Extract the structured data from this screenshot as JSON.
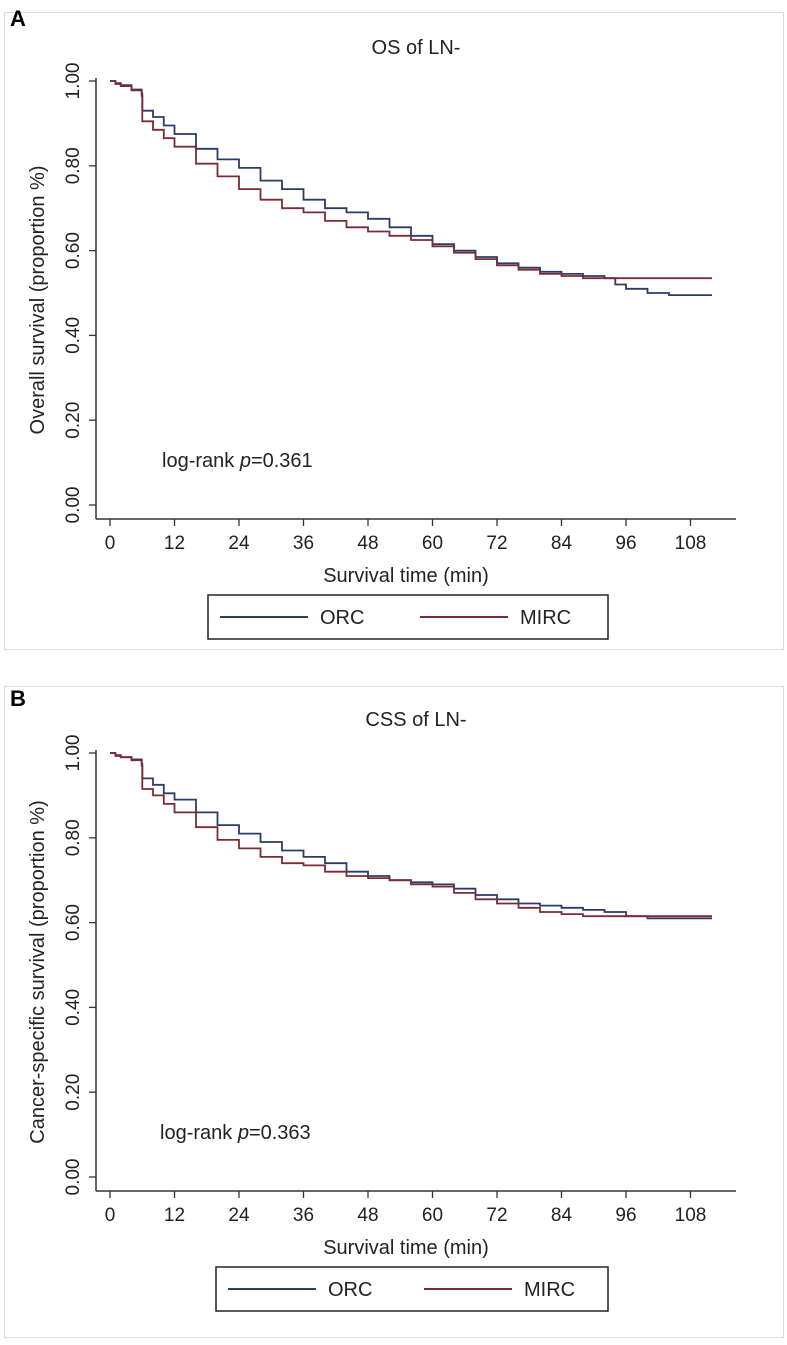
{
  "panels": [
    {
      "letter": "A"
    },
    {
      "letter": "B"
    }
  ],
  "colors": {
    "orc": "#2b3c6b",
    "mirc": "#7d2b33",
    "axis": "#333333"
  },
  "chart_data": [
    {
      "type": "line",
      "title": "OS of  LN-",
      "xlabel": "Survival time (min)",
      "ylabel": "Overall survival (proportion %)",
      "xlim": [
        0,
        112
      ],
      "ylim": [
        0,
        1
      ],
      "xticks": [
        0,
        12,
        24,
        36,
        48,
        60,
        72,
        84,
        96,
        108
      ],
      "xtick_labels": [
        "0",
        "12",
        "24",
        "36",
        "48",
        "60",
        "72",
        "84",
        "96",
        "108"
      ],
      "yticks": [
        0,
        0.2,
        0.4,
        0.6,
        0.8,
        1.0
      ],
      "ytick_labels": [
        "0.00",
        "0.20",
        "0.40",
        "0.60",
        "0.80",
        "1.00"
      ],
      "annotation": {
        "prefix": "log-rank ",
        "italic": "p",
        "suffix": "=0.361"
      },
      "legend_position": "bottom",
      "series": [
        {
          "name": "ORC",
          "color": "#2b3c6b",
          "x": [
            0,
            1,
            2,
            4,
            5.9,
            6,
            8,
            10,
            12,
            16,
            20,
            24,
            28,
            32,
            36,
            40,
            44,
            48,
            52,
            56,
            60,
            64,
            68,
            72,
            76,
            80,
            84,
            88,
            92,
            94,
            96,
            100,
            104,
            108,
            112
          ],
          "y": [
            1.0,
            0.995,
            0.99,
            0.98,
            0.97,
            0.93,
            0.915,
            0.895,
            0.875,
            0.84,
            0.815,
            0.795,
            0.765,
            0.745,
            0.72,
            0.7,
            0.69,
            0.675,
            0.655,
            0.635,
            0.615,
            0.6,
            0.585,
            0.57,
            0.56,
            0.55,
            0.545,
            0.54,
            0.535,
            0.52,
            0.51,
            0.5,
            0.495,
            0.495,
            0.495
          ]
        },
        {
          "name": "MIRC",
          "color": "#7d2b33",
          "x": [
            0,
            1,
            2,
            4,
            5.9,
            6,
            8,
            10,
            12,
            16,
            20,
            24,
            28,
            32,
            36,
            40,
            44,
            48,
            52,
            56,
            60,
            64,
            68,
            72,
            76,
            80,
            84,
            88,
            92,
            96,
            100,
            104,
            108,
            112
          ],
          "y": [
            1.0,
            0.993,
            0.988,
            0.978,
            0.965,
            0.905,
            0.885,
            0.865,
            0.845,
            0.805,
            0.775,
            0.745,
            0.72,
            0.7,
            0.69,
            0.67,
            0.655,
            0.645,
            0.635,
            0.625,
            0.61,
            0.595,
            0.58,
            0.565,
            0.555,
            0.545,
            0.54,
            0.535,
            0.535,
            0.535,
            0.535,
            0.535,
            0.535,
            0.535
          ]
        }
      ]
    },
    {
      "type": "line",
      "title": "CSS of  LN-",
      "xlabel": "Survival time (min)",
      "ylabel": "Cancer-specific survival (proportion %)",
      "xlim": [
        0,
        112
      ],
      "ylim": [
        0,
        1
      ],
      "xticks": [
        0,
        12,
        24,
        36,
        48,
        60,
        72,
        84,
        96,
        108
      ],
      "xtick_labels": [
        "0",
        "12",
        "24",
        "36",
        "48",
        "60",
        "72",
        "84",
        "96",
        "108"
      ],
      "yticks": [
        0,
        0.2,
        0.4,
        0.6,
        0.8,
        1.0
      ],
      "ytick_labels": [
        "0.00",
        "0.20",
        "0.40",
        "0.60",
        "0.80",
        "1.00"
      ],
      "annotation": {
        "prefix": "log-rank ",
        "italic": "p",
        "suffix": "=0.363"
      },
      "legend_position": "bottom",
      "series": [
        {
          "name": "ORC",
          "color": "#2b3c6b",
          "x": [
            0,
            1,
            2,
            4,
            5.9,
            6,
            8,
            10,
            12,
            16,
            20,
            24,
            28,
            32,
            36,
            40,
            44,
            48,
            52,
            56,
            60,
            64,
            68,
            72,
            76,
            80,
            84,
            88,
            92,
            96,
            100,
            104,
            108,
            112
          ],
          "y": [
            1.0,
            0.995,
            0.99,
            0.985,
            0.975,
            0.94,
            0.925,
            0.905,
            0.89,
            0.86,
            0.83,
            0.81,
            0.79,
            0.77,
            0.755,
            0.74,
            0.72,
            0.71,
            0.7,
            0.695,
            0.69,
            0.68,
            0.665,
            0.655,
            0.645,
            0.64,
            0.635,
            0.63,
            0.625,
            0.615,
            0.61,
            0.61,
            0.61,
            0.61
          ]
        },
        {
          "name": "MIRC",
          "color": "#7d2b33",
          "x": [
            0,
            1,
            2,
            4,
            5.9,
            6,
            8,
            10,
            12,
            16,
            20,
            24,
            28,
            32,
            36,
            40,
            44,
            48,
            52,
            56,
            60,
            64,
            68,
            72,
            76,
            80,
            84,
            88,
            92,
            96,
            100,
            104,
            108,
            112
          ],
          "y": [
            1.0,
            0.993,
            0.99,
            0.983,
            0.97,
            0.915,
            0.9,
            0.88,
            0.86,
            0.825,
            0.795,
            0.775,
            0.755,
            0.74,
            0.735,
            0.72,
            0.71,
            0.705,
            0.7,
            0.69,
            0.685,
            0.67,
            0.655,
            0.645,
            0.635,
            0.625,
            0.62,
            0.615,
            0.615,
            0.615,
            0.615,
            0.615,
            0.615,
            0.615
          ]
        }
      ]
    }
  ]
}
